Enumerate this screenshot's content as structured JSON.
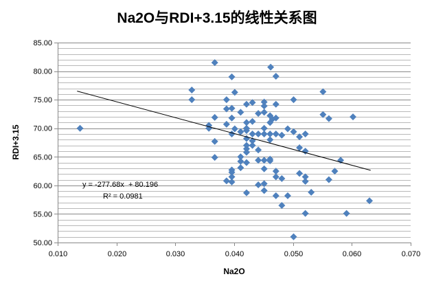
{
  "chart_data": {
    "type": "scatter",
    "title": "Na2O与RDI+3.15的线性关系图",
    "xlabel": "Na2O",
    "ylabel": "RDI+3.15",
    "xlim": [
      0.01,
      0.07
    ],
    "ylim": [
      50,
      85
    ],
    "x_ticks": [
      "0.010",
      "0.020",
      "0.030",
      "0.040",
      "0.050",
      "0.060",
      "0.070"
    ],
    "y_ticks": [
      "50.00",
      "55.00",
      "60.00",
      "65.00",
      "70.00",
      "75.00",
      "80.00",
      "85.00"
    ],
    "grid": "horizontal major and minor",
    "legend": "none",
    "marker_color": "#4F81BD",
    "trendline": {
      "slope": -277.68,
      "intercept": 80.196,
      "x_range": [
        0.0133,
        0.0632
      ],
      "equation": "y = -277.68x  + 80.196",
      "r2_label": "R² = 0.0981"
    },
    "points": [
      [
        0.0138,
        70.0
      ],
      [
        0.0328,
        76.7
      ],
      [
        0.0328,
        75.0
      ],
      [
        0.0367,
        81.5
      ],
      [
        0.0367,
        71.9
      ],
      [
        0.0357,
        70.5
      ],
      [
        0.0357,
        70.0
      ],
      [
        0.0367,
        67.7
      ],
      [
        0.0367,
        64.9
      ],
      [
        0.0387,
        75.0
      ],
      [
        0.0387,
        73.4
      ],
      [
        0.0396,
        79.0
      ],
      [
        0.0396,
        73.5
      ],
      [
        0.0396,
        71.8
      ],
      [
        0.0387,
        70.7
      ],
      [
        0.0396,
        69.0
      ],
      [
        0.0387,
        60.8
      ],
      [
        0.0396,
        62.7
      ],
      [
        0.0396,
        62.3
      ],
      [
        0.0396,
        61.5
      ],
      [
        0.0396,
        60.6
      ],
      [
        0.0462,
        80.7
      ],
      [
        0.0471,
        79.1
      ],
      [
        0.0401,
        76.3
      ],
      [
        0.0551,
        76.4
      ],
      [
        0.0501,
        75.0
      ],
      [
        0.0421,
        74.2
      ],
      [
        0.0431,
        74.5
      ],
      [
        0.0451,
        74.6
      ],
      [
        0.0451,
        73.9
      ],
      [
        0.0471,
        74.2
      ],
      [
        0.0411,
        72.8
      ],
      [
        0.0441,
        72.6
      ],
      [
        0.0451,
        72.8
      ],
      [
        0.0461,
        72.2
      ],
      [
        0.0471,
        71.8
      ],
      [
        0.0465,
        71.6
      ],
      [
        0.0551,
        72.4
      ],
      [
        0.0561,
        71.7
      ],
      [
        0.0602,
        72.0
      ],
      [
        0.0421,
        71.0
      ],
      [
        0.0431,
        71.2
      ],
      [
        0.0461,
        71.0
      ],
      [
        0.0401,
        69.9
      ],
      [
        0.0411,
        69.4
      ],
      [
        0.0421,
        70.0
      ],
      [
        0.0421,
        69.6
      ],
      [
        0.0431,
        69.0
      ],
      [
        0.0441,
        69.0
      ],
      [
        0.0451,
        70.0
      ],
      [
        0.0451,
        69.0
      ],
      [
        0.0461,
        69.0
      ],
      [
        0.0471,
        69.0
      ],
      [
        0.0481,
        68.8
      ],
      [
        0.0491,
        69.9
      ],
      [
        0.0501,
        69.4
      ],
      [
        0.0511,
        68.5
      ],
      [
        0.0521,
        69.0
      ],
      [
        0.0421,
        68.2
      ],
      [
        0.0431,
        67.8
      ],
      [
        0.0461,
        68.0
      ],
      [
        0.0421,
        67.0
      ],
      [
        0.0431,
        67.0
      ],
      [
        0.0421,
        66.4
      ],
      [
        0.0421,
        65.8
      ],
      [
        0.0441,
        66.2
      ],
      [
        0.0511,
        66.6
      ],
      [
        0.0521,
        66.0
      ],
      [
        0.0411,
        65.0
      ],
      [
        0.0411,
        64.2
      ],
      [
        0.0421,
        64.0
      ],
      [
        0.0441,
        64.4
      ],
      [
        0.0451,
        64.4
      ],
      [
        0.0461,
        64.6
      ],
      [
        0.0461,
        64.3
      ],
      [
        0.0581,
        64.4
      ],
      [
        0.0411,
        63.1
      ],
      [
        0.0451,
        62.9
      ],
      [
        0.0471,
        62.5
      ],
      [
        0.0471,
        61.5
      ],
      [
        0.0481,
        61.2
      ],
      [
        0.0511,
        62.1
      ],
      [
        0.0521,
        61.5
      ],
      [
        0.0521,
        60.7
      ],
      [
        0.0571,
        62.5
      ],
      [
        0.0561,
        61.0
      ],
      [
        0.0441,
        60.1
      ],
      [
        0.0451,
        60.3
      ],
      [
        0.0451,
        59.1
      ],
      [
        0.0421,
        58.7
      ],
      [
        0.0471,
        58.2
      ],
      [
        0.0491,
        58.2
      ],
      [
        0.0531,
        58.8
      ],
      [
        0.0481,
        56.5
      ],
      [
        0.0521,
        55.1
      ],
      [
        0.0591,
        55.1
      ],
      [
        0.063,
        57.3
      ],
      [
        0.0501,
        51.0
      ]
    ]
  }
}
